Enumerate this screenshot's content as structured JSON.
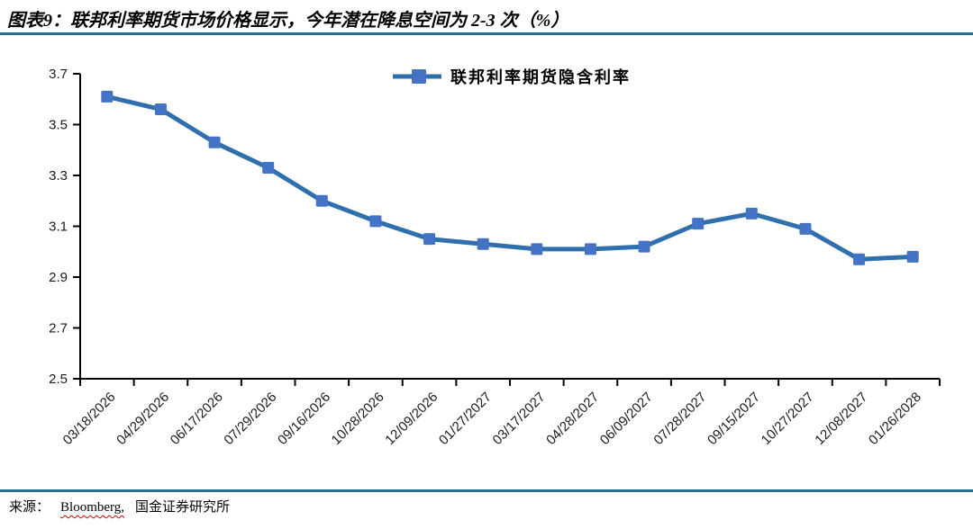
{
  "page": {
    "title": "图表9：联邦利率期货市场价格显示，今年潜在降息空间为 2-3 次（%）"
  },
  "footer": {
    "source_label": "来源：",
    "source_bloomberg": "Bloomberg,",
    "source_org": "国金证券研究所"
  },
  "colors": {
    "accent_rule": "#2b6c8f",
    "line": "#2e6fac",
    "marker": "#4472c4",
    "axis": "#000000",
    "tick_label": "#1a1a1a"
  },
  "chart_data": {
    "type": "line",
    "title": "联邦利率期货市场价格显示，今年潜在降息空间为 2-3 次（%）",
    "categories": [
      "03/18/2026",
      "04/29/2026",
      "06/17/2026",
      "07/29/2026",
      "09/16/2026",
      "10/28/2026",
      "12/09/2026",
      "01/27/2027",
      "03/17/2027",
      "04/28/2027",
      "06/09/2027",
      "07/28/2027",
      "09/15/2027",
      "10/27/2027",
      "12/08/2027",
      "01/26/2028"
    ],
    "series": [
      {
        "name": "联邦利率期货隐含利率",
        "values": [
          3.61,
          3.56,
          3.43,
          3.33,
          3.2,
          3.12,
          3.05,
          3.03,
          3.01,
          3.01,
          3.02,
          3.11,
          3.15,
          3.09,
          2.97,
          2.98
        ]
      }
    ],
    "xlabel": "",
    "ylabel": "",
    "ylim": [
      2.5,
      3.7
    ],
    "yticks": [
      3.7,
      3.5,
      3.3,
      3.1,
      2.9,
      2.7,
      2.5
    ],
    "grid": false,
    "legend_position": "top-center"
  }
}
